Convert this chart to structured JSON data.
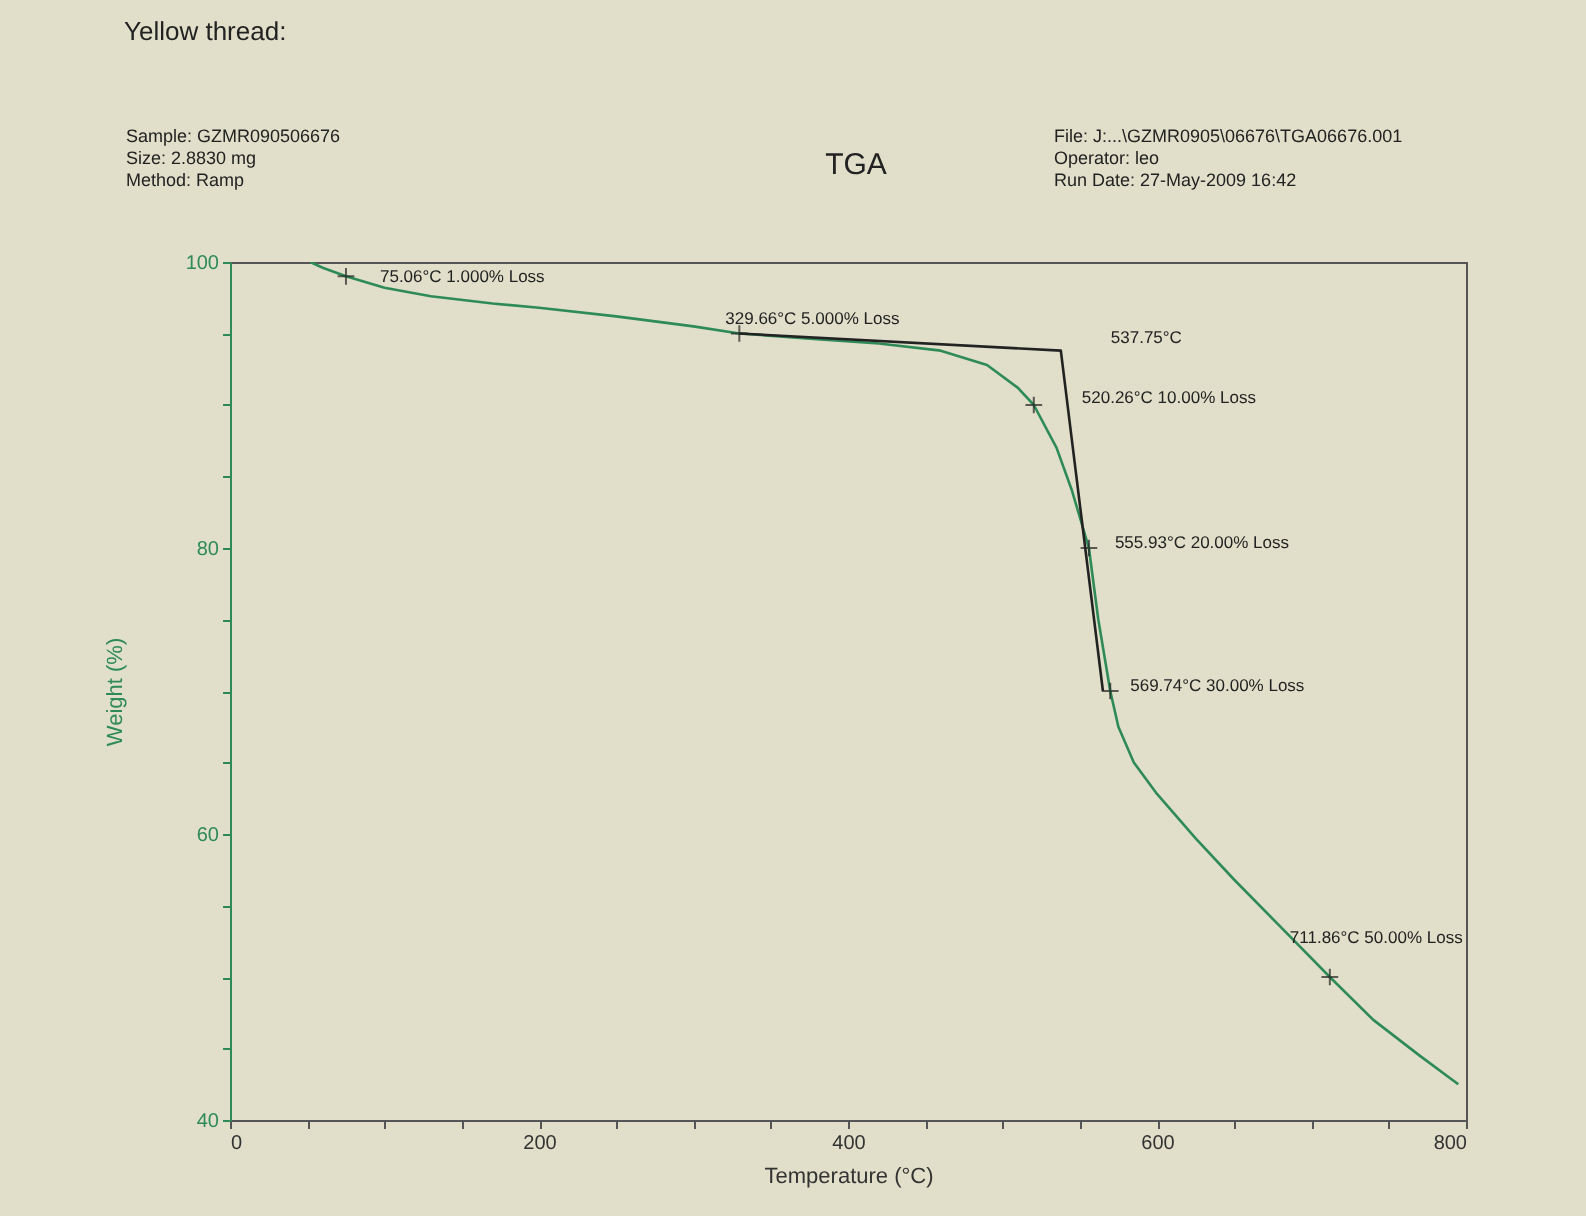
{
  "chart_data": {
    "type": "line",
    "title": "Yellow thread:",
    "subtitle": "TGA",
    "xlabel": "Temperature (°C)",
    "ylabel": "Weight (%)",
    "xlim": [
      0,
      800
    ],
    "ylim": [
      40,
      100
    ],
    "xticks": [
      0,
      {
        "value": 50,
        "label": null
      },
      {
        "value": 100,
        "label": null
      },
      {
        "value": 150,
        "label": null
      },
      200,
      {
        "value": 250,
        "label": null
      },
      {
        "value": 300,
        "label": null
      },
      {
        "value": 350,
        "label": null
      },
      400,
      {
        "value": 450,
        "label": null
      },
      {
        "value": 500,
        "label": null
      },
      {
        "value": 550,
        "label": null
      },
      600,
      {
        "value": 650,
        "label": null
      },
      {
        "value": 700,
        "label": null
      },
      {
        "value": 750,
        "label": null
      },
      800
    ],
    "yticks": [
      40,
      {
        "value": 45,
        "label": null
      },
      {
        "value": 50,
        "label": null
      },
      {
        "value": 55,
        "label": null
      },
      60,
      {
        "value": 65,
        "label": null
      },
      {
        "value": 70,
        "label": null
      },
      {
        "value": 75,
        "label": null
      },
      80,
      {
        "value": 85,
        "label": null
      },
      {
        "value": 90,
        "label": null
      },
      {
        "value": 95,
        "label": null
      },
      100
    ],
    "grid": false,
    "series": [
      {
        "color": "#2e8b57",
        "x": [
          52,
          60,
          75.06,
          100,
          130,
          170,
          200,
          250,
          300,
          329.66,
          380,
          420,
          460,
          490,
          510,
          520.26,
          535,
          545,
          555.93,
          562,
          569.74,
          575,
          585,
          600,
          625,
          650,
          680,
          711.86,
          740,
          770,
          795
        ],
        "values": [
          100,
          99.6,
          99,
          98.2,
          97.6,
          97.1,
          96.8,
          96.2,
          95.5,
          95,
          94.6,
          94.3,
          93.8,
          92.8,
          91.2,
          90,
          87,
          84,
          80,
          75,
          70,
          67.5,
          65,
          62.8,
          59.7,
          56.8,
          53.5,
          50,
          47,
          44.5,
          42.5
        ]
      },
      {
        "type": "line",
        "color": "#222222",
        "x": [
          329.66,
          537.75,
          565
        ],
        "values": [
          95,
          93.8,
          70
        ]
      },
      {
        "type": "scatter",
        "color": "#222222",
        "marker": "cross",
        "x": [
          75.06,
          329.66,
          520.26,
          555.93,
          569.74,
          711.86
        ],
        "values": [
          99,
          95,
          90,
          80,
          70,
          50
        ]
      }
    ],
    "annotations": [
      "Sample: GZMR090506676",
      "Size:  2.8830 mg",
      "Method: Ramp",
      "File: J:...\\GZMR0905\\06676\\TGA06676.001",
      "Operator: leo",
      "Run Date: 27-May-2009 16:42",
      {
        "text": "75.06°C 1.000% Loss",
        "x": 75.06,
        "y": 99
      },
      {
        "text": "329.66°C 5.000% Loss",
        "x": 329.66,
        "y": 95
      },
      {
        "text": "537.75°C",
        "x": 537.75,
        "y": 93.8
      },
      {
        "text": "520.26°C 10.00% Loss",
        "x": 520.26,
        "y": 90
      },
      {
        "text": "555.93°C 20.00% Loss",
        "x": 555.93,
        "y": 80
      },
      {
        "text": "569.74°C 30.00% Loss",
        "x": 569.74,
        "y": 70
      },
      {
        "text": "711.86°C 50.00% Loss",
        "x": 711.86,
        "y": 50
      }
    ]
  }
}
